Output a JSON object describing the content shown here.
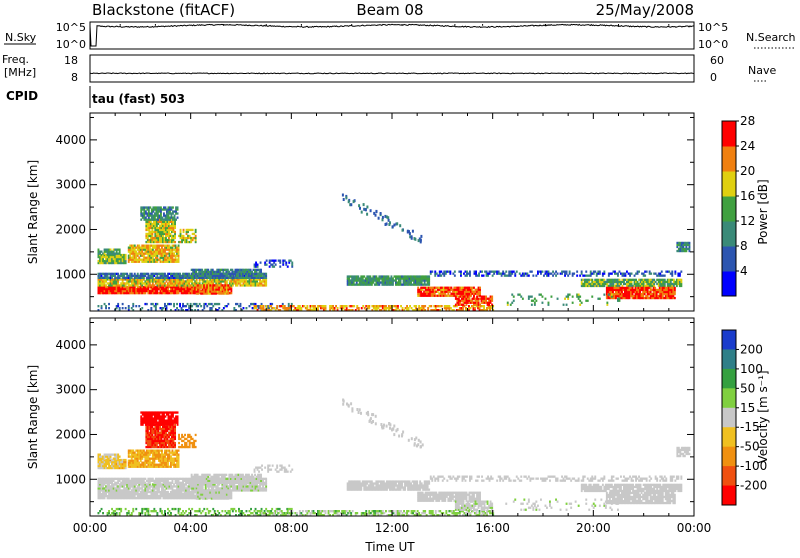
{
  "header": {
    "title": "Blackstone (fitACF)",
    "beam": "Beam 08",
    "date": "25/May/2008"
  },
  "chart_data": [
    {
      "type": "line",
      "name": "nsky-nsearch",
      "left_label": "N.Sky",
      "right_label": "N.Search",
      "left_ticks": [
        "10^5",
        "10^0"
      ],
      "right_ticks": [
        "10^5",
        "10^0"
      ],
      "x_range_hours": [
        0,
        24
      ],
      "baseline_exponent": 4.8,
      "spike_times_hours": [
        1.2,
        2.6,
        5.3,
        7.0,
        8.4,
        10.4,
        12.4,
        14.5,
        15.6,
        18.1,
        21.0,
        23.0
      ],
      "dip_times_hours": [
        0.15
      ]
    },
    {
      "type": "line",
      "name": "freq-nave",
      "left_label_line1": "Freq.",
      "left_label_line2": "[MHz]",
      "right_label": "Nave",
      "left_ticks": [
        18,
        8
      ],
      "right_ticks": [
        60,
        0
      ],
      "freq_range": [
        8,
        18
      ],
      "nave_range": [
        0,
        60
      ],
      "x_range_hours": [
        0,
        24
      ],
      "freq_mhz": 10.9
    },
    {
      "type": "heatmap",
      "name": "power",
      "cpid_label": "CPID",
      "mode_label": "tau (fast) 503",
      "ylabel": "Slant Range [km]",
      "yticks": [
        1000,
        2000,
        3000,
        4000
      ],
      "ylim": [
        180,
        4600
      ],
      "xlim_hours": [
        0,
        24
      ],
      "colorbar_label": "Power [dB]",
      "colorbar_ticks": [
        4,
        8,
        12,
        16,
        20,
        24,
        28
      ],
      "colorbar_range": [
        0,
        32
      ],
      "colors": [
        "#0000ff",
        "#2c55b0",
        "#3a8a78",
        "#40a040",
        "#e0d010",
        "#f08010",
        "#ff0000"
      ]
    },
    {
      "type": "heatmap",
      "name": "velocity",
      "ylabel": "Slant Range [km]",
      "yticks": [
        1000,
        2000,
        3000,
        4000
      ],
      "ylim": [
        180,
        4600
      ],
      "xlim_hours": [
        0,
        24
      ],
      "xticks": [
        "00:00",
        "04:00",
        "08:00",
        "12:00",
        "16:00",
        "20:00",
        "00:00"
      ],
      "xlabel": "Time UT",
      "colorbar_label": "Velocity [m s⁻¹]",
      "colorbar_ticks": [
        200,
        100,
        50,
        15,
        -15,
        -50,
        -100,
        -200
      ],
      "colors": [
        "#1a3ccc",
        "#2f7f88",
        "#35a040",
        "#80d040",
        "#c8c8c8",
        "#f0c020",
        "#f09010",
        "#f05010",
        "#ff0000"
      ]
    }
  ],
  "echo_regions": [
    {
      "t0": 0.3,
      "t1": 1.4,
      "r0": 1230,
      "r1": 1420,
      "pv": 18,
      "vel": -20,
      "density": 0.95
    },
    {
      "t0": 0.3,
      "t1": 1.2,
      "r0": 1440,
      "r1": 1560,
      "pv": 14,
      "vel": -15,
      "density": 0.85
    },
    {
      "t0": 0.3,
      "t1": 5.6,
      "r0": 560,
      "r1": 720,
      "pv": 29,
      "vel": 0,
      "density": 0.95
    },
    {
      "t0": 0.3,
      "t1": 7.0,
      "r0": 730,
      "r1": 880,
      "pv": 20,
      "vel": 5,
      "density": 0.9
    },
    {
      "t0": 0.3,
      "t1": 7.0,
      "r0": 900,
      "r1": 1000,
      "pv": 9,
      "vel": 0,
      "density": 0.9
    },
    {
      "t0": 1.5,
      "t1": 3.5,
      "r0": 1260,
      "r1": 1640,
      "pv": 22,
      "vel": -30,
      "density": 0.9
    },
    {
      "t0": 2.2,
      "t1": 3.4,
      "r0": 1700,
      "r1": 2200,
      "pv": 20,
      "vel": -150,
      "density": 0.9
    },
    {
      "t0": 2.0,
      "t1": 3.5,
      "r0": 2200,
      "r1": 2500,
      "pv": 12,
      "vel": -200,
      "density": 0.85
    },
    {
      "t0": 3.5,
      "t1": 4.2,
      "r0": 1700,
      "r1": 2000,
      "pv": 20,
      "vel": -50,
      "density": 0.6
    },
    {
      "t0": 4.0,
      "t1": 6.8,
      "r0": 900,
      "r1": 1100,
      "pv": 10,
      "vel": 5,
      "density": 0.9
    },
    {
      "t0": 4.2,
      "t1": 5.5,
      "r0": 550,
      "r1": 760,
      "pv": 26,
      "vel": 5,
      "density": 0.9
    },
    {
      "t0": 0.3,
      "t1": 8.0,
      "r0": 180,
      "r1": 320,
      "pv": 8,
      "vel": 30,
      "density": 0.3
    },
    {
      "t0": 6.5,
      "t1": 16.0,
      "r0": 180,
      "r1": 300,
      "pv": 24,
      "vel": 20,
      "density": 0.6
    },
    {
      "t0": 10.2,
      "t1": 13.5,
      "r0": 750,
      "r1": 950,
      "pv": 13,
      "vel": 0,
      "density": 0.9
    },
    {
      "t0": 13.0,
      "t1": 15.5,
      "r0": 500,
      "r1": 700,
      "pv": 27,
      "vel": 0,
      "density": 0.9
    },
    {
      "t0": 14.5,
      "t1": 16.0,
      "r0": 300,
      "r1": 520,
      "pv": 28,
      "vel": 5,
      "density": 0.8
    },
    {
      "t0": 13.5,
      "t1": 23.5,
      "r0": 950,
      "r1": 1050,
      "pv": 7,
      "vel": 0,
      "density": 0.45
    },
    {
      "t0": 19.5,
      "t1": 23.5,
      "r0": 720,
      "r1": 880,
      "pv": 16,
      "vel": 0,
      "density": 0.9
    },
    {
      "t0": 20.5,
      "t1": 23.2,
      "r0": 450,
      "r1": 700,
      "pv": 28,
      "vel": 0,
      "density": 0.9
    },
    {
      "t0": 16.5,
      "t1": 21.0,
      "r0": 300,
      "r1": 550,
      "pv": 15,
      "vel": 5,
      "density": 0.15
    },
    {
      "t0": 23.3,
      "t1": 23.8,
      "r0": 1500,
      "r1": 1700,
      "pv": 12,
      "vel": 0,
      "density": 0.8
    },
    {
      "t0": 6.5,
      "t1": 8.0,
      "r0": 1150,
      "r1": 1300,
      "pv": 6,
      "vel": 0,
      "density": 0.35
    }
  ]
}
